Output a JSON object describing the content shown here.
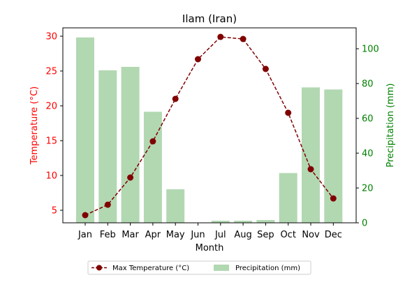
{
  "chart_data": {
    "type": "bar+line",
    "title": "Ilam (Iran)",
    "xlabel": "Month",
    "ylabel_left": "Temperature (°C)",
    "ylabel_right": "Precipitation (mm)",
    "categories": [
      "Jan",
      "Feb",
      "Mar",
      "Apr",
      "May",
      "Jun",
      "Jul",
      "Aug",
      "Sep",
      "Oct",
      "Nov",
      "Dec"
    ],
    "series": [
      {
        "name": "Max Temperature (°C)",
        "type": "line",
        "axis": "left",
        "color": "#800000",
        "values": [
          4.3,
          5.8,
          9.7,
          14.9,
          21.0,
          26.7,
          29.9,
          29.6,
          25.3,
          19.0,
          10.9,
          6.7
        ]
      },
      {
        "name": "Precipitation (mm)",
        "type": "bar",
        "axis": "right",
        "color": "#b2d8b2",
        "values": [
          106.5,
          87.6,
          89.6,
          63.8,
          19.3,
          0,
          1.2,
          1.2,
          1.6,
          28.6,
          77.8,
          76.6
        ]
      }
    ],
    "ylim_left": [
      3.2,
      31.2
    ],
    "yticks_left": [
      5,
      10,
      15,
      20,
      25,
      30
    ],
    "ylim_right": [
      0,
      112
    ],
    "yticks_right": [
      0,
      20,
      40,
      60,
      80,
      100
    ],
    "left_axis_color": "#ff0000",
    "right_axis_color": "#008000",
    "grid": false,
    "legend": {
      "placement": "bottom-center",
      "columns": 2
    }
  }
}
